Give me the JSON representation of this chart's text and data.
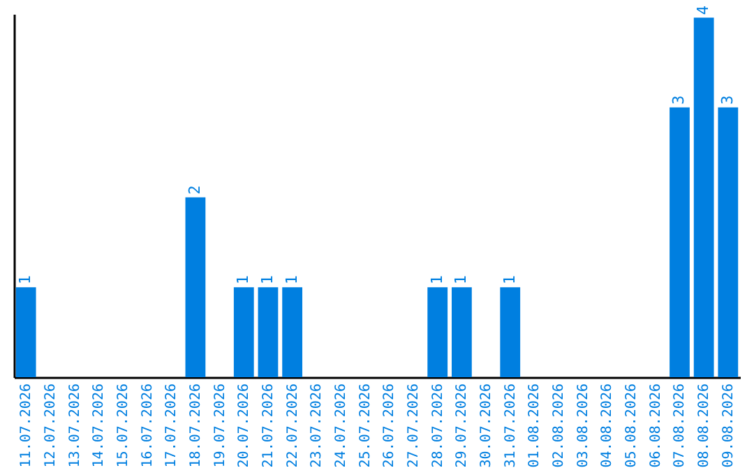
{
  "chart_data": {
    "type": "bar",
    "categories": [
      "11.07.2026",
      "12.07.2026",
      "13.07.2026",
      "14.07.2026",
      "15.07.2026",
      "16.07.2026",
      "17.07.2026",
      "18.07.2026",
      "19.07.2026",
      "20.07.2026",
      "21.07.2026",
      "22.07.2026",
      "23.07.2026",
      "24.07.2026",
      "25.07.2026",
      "26.07.2026",
      "27.07.2026",
      "28.07.2026",
      "29.07.2026",
      "30.07.2026",
      "31.07.2026",
      "01.08.2026",
      "02.08.2026",
      "03.08.2026",
      "04.08.2026",
      "05.08.2026",
      "06.08.2026",
      "07.08.2026",
      "08.08.2026",
      "09.08.2026"
    ],
    "values": [
      1,
      0,
      0,
      0,
      0,
      0,
      0,
      2,
      0,
      1,
      1,
      1,
      0,
      0,
      0,
      0,
      0,
      1,
      1,
      0,
      1,
      0,
      0,
      0,
      0,
      0,
      0,
      3,
      4,
      3
    ],
    "value_labels": [
      "1",
      null,
      null,
      null,
      null,
      null,
      null,
      "2",
      null,
      "1",
      "1",
      "1",
      null,
      null,
      null,
      null,
      null,
      "1",
      "1",
      null,
      "1",
      null,
      null,
      null,
      null,
      null,
      null,
      "3",
      "4",
      "3"
    ],
    "color": "#007fe0",
    "grid": false,
    "tick_labels": "x"
  }
}
